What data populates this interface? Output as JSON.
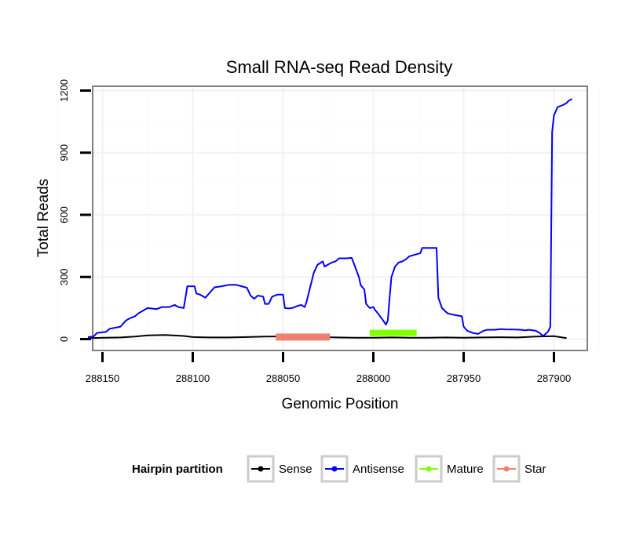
{
  "chart_data": {
    "type": "line",
    "title": "Small RNA-seq Read Density",
    "xlabel": "Genomic Position",
    "ylabel": "Total Reads",
    "xlim": [
      288160,
      287890
    ],
    "ylim": [
      0,
      1200
    ],
    "x_reversed": true,
    "grid": true,
    "x_ticks": [
      288150,
      288100,
      288050,
      288000,
      287950,
      287900
    ],
    "y_ticks": [
      0,
      300,
      600,
      900,
      1200
    ],
    "legend": {
      "title": "Hairpin partition",
      "position": "bottom",
      "entries": [
        "Sense",
        "Antisense",
        "Mature",
        "Star"
      ]
    },
    "series": [
      {
        "name": "Sense",
        "color": "#000000",
        "width": 2,
        "points": [
          [
            288158,
            5
          ],
          [
            288140,
            8
          ],
          [
            288132,
            12
          ],
          [
            288125,
            18
          ],
          [
            288115,
            20
          ],
          [
            288105,
            15
          ],
          [
            288100,
            10
          ],
          [
            288090,
            8
          ],
          [
            288080,
            8
          ],
          [
            288070,
            10
          ],
          [
            288060,
            12
          ],
          [
            288050,
            13
          ],
          [
            288040,
            12
          ],
          [
            288030,
            10
          ],
          [
            288020,
            8
          ],
          [
            288010,
            7
          ],
          [
            288000,
            7
          ],
          [
            287990,
            8
          ],
          [
            287980,
            7
          ],
          [
            287970,
            7
          ],
          [
            287960,
            8
          ],
          [
            287950,
            7
          ],
          [
            287940,
            8
          ],
          [
            287930,
            9
          ],
          [
            287920,
            8
          ],
          [
            287910,
            12
          ],
          [
            287900,
            14
          ],
          [
            287893,
            5
          ]
        ]
      },
      {
        "name": "Antisense",
        "color": "#0000ff",
        "width": 2,
        "points": [
          [
            288158,
            10
          ],
          [
            288155,
            12
          ],
          [
            288153,
            30
          ],
          [
            288148,
            35
          ],
          [
            288146,
            50
          ],
          [
            288140,
            60
          ],
          [
            288137,
            90
          ],
          [
            288135,
            100
          ],
          [
            288132,
            110
          ],
          [
            288130,
            125
          ],
          [
            288127,
            140
          ],
          [
            288125,
            150
          ],
          [
            288120,
            145
          ],
          [
            288117,
            155
          ],
          [
            288113,
            155
          ],
          [
            288110,
            165
          ],
          [
            288108,
            155
          ],
          [
            288105,
            150
          ],
          [
            288103,
            255
          ],
          [
            288099,
            255
          ],
          [
            288098,
            220
          ],
          [
            288096,
            215
          ],
          [
            288093,
            200
          ],
          [
            288091,
            220
          ],
          [
            288088,
            250
          ],
          [
            288084,
            255
          ],
          [
            288080,
            262
          ],
          [
            288076,
            262
          ],
          [
            288073,
            255
          ],
          [
            288070,
            248
          ],
          [
            288068,
            210
          ],
          [
            288066,
            195
          ],
          [
            288064,
            210
          ],
          [
            288061,
            205
          ],
          [
            288060,
            170
          ],
          [
            288058,
            170
          ],
          [
            288056,
            205
          ],
          [
            288053,
            215
          ],
          [
            288050,
            215
          ],
          [
            288049,
            150
          ],
          [
            288047,
            148
          ],
          [
            288045,
            150
          ],
          [
            288042,
            160
          ],
          [
            288040,
            165
          ],
          [
            288038,
            155
          ],
          [
            288037,
            180
          ],
          [
            288035,
            250
          ],
          [
            288033,
            320
          ],
          [
            288031,
            358
          ],
          [
            288028,
            375
          ],
          [
            288027,
            350
          ],
          [
            288025,
            360
          ],
          [
            288023,
            370
          ],
          [
            288021,
            375
          ],
          [
            288019,
            390
          ],
          [
            288015,
            390
          ],
          [
            288012,
            392
          ],
          [
            288011,
            370
          ],
          [
            288008,
            300
          ],
          [
            288007,
            260
          ],
          [
            288005,
            240
          ],
          [
            288004,
            170
          ],
          [
            288002,
            150
          ],
          [
            288000,
            155
          ],
          [
            287999,
            140
          ],
          [
            287998,
            130
          ],
          [
            287995,
            95
          ],
          [
            287993,
            70
          ],
          [
            287992,
            90
          ],
          [
            287991,
            200
          ],
          [
            287990,
            300
          ],
          [
            287988,
            350
          ],
          [
            287986,
            370
          ],
          [
            287984,
            375
          ],
          [
            287982,
            385
          ],
          [
            287980,
            400
          ],
          [
            287976,
            410
          ],
          [
            287974,
            415
          ],
          [
            287973,
            440
          ],
          [
            287965,
            440
          ],
          [
            287964,
            200
          ],
          [
            287962,
            150
          ],
          [
            287959,
            125
          ],
          [
            287957,
            120
          ],
          [
            287954,
            115
          ],
          [
            287951,
            110
          ],
          [
            287950,
            60
          ],
          [
            287948,
            40
          ],
          [
            287945,
            30
          ],
          [
            287942,
            25
          ],
          [
            287939,
            40
          ],
          [
            287937,
            45
          ],
          [
            287935,
            45
          ],
          [
            287933,
            45
          ],
          [
            287929,
            48
          ],
          [
            287927,
            47
          ],
          [
            287922,
            46
          ],
          [
            287918,
            45
          ],
          [
            287916,
            42
          ],
          [
            287914,
            45
          ],
          [
            287910,
            40
          ],
          [
            287908,
            30
          ],
          [
            287906,
            15
          ],
          [
            287904,
            30
          ],
          [
            287903,
            40
          ],
          [
            287902,
            60
          ],
          [
            287901,
            1000
          ],
          [
            287900,
            1080
          ],
          [
            287898,
            1120
          ],
          [
            287895,
            1130
          ],
          [
            287893,
            1140
          ],
          [
            287892,
            1150
          ],
          [
            287890,
            1160
          ]
        ]
      }
    ],
    "segments": [
      {
        "name": "Mature",
        "color": "#7fff00",
        "width": 8,
        "from": 288002,
        "to": 287976,
        "y": 30
      },
      {
        "name": "Star",
        "color": "#f08070",
        "width": 9,
        "from": 288054,
        "to": 288024,
        "y": 10
      }
    ]
  }
}
